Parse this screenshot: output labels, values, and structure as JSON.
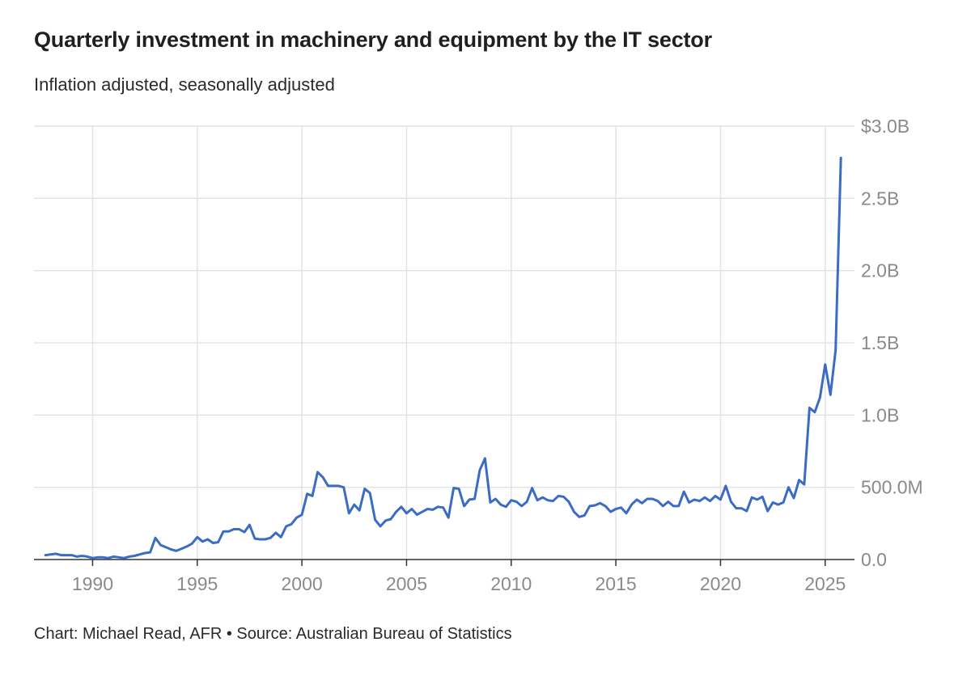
{
  "chart_data": {
    "type": "line",
    "title": "Quarterly investment in machinery and equipment by the IT sector",
    "subtitle": "Inflation adjusted, seasonally adjusted",
    "source": "Chart: Michael Read, AFR • Source: Australian Bureau of Statistics",
    "xlabel": "",
    "ylabel": "",
    "xlim": [
      1987.2,
      2026.4
    ],
    "ylim": [
      0,
      3.0
    ],
    "x_ticks": [
      1990,
      1995,
      2000,
      2005,
      2010,
      2015,
      2020,
      2025
    ],
    "x_tick_labels": [
      "1990",
      "1995",
      "2000",
      "2005",
      "2010",
      "2015",
      "2020",
      "2025"
    ],
    "y_ticks": [
      0,
      0.5,
      1.0,
      1.5,
      2.0,
      2.5,
      3.0
    ],
    "y_tick_labels": [
      "0.0",
      "500.0M",
      "1.0B",
      "1.5B",
      "2.0B",
      "2.5B",
      "$3.0B"
    ],
    "grid": true,
    "legend": "none",
    "line_color": "#3a6cc4",
    "series": [
      {
        "x": [
          1987.75,
          1988.0,
          1988.25,
          1988.5,
          1988.75,
          1989.0,
          1989.25,
          1989.5,
          1989.75,
          1990.0,
          1990.25,
          1990.5,
          1990.75,
          1991.0,
          1991.25,
          1991.5,
          1991.75,
          1992.0,
          1992.25,
          1992.5,
          1992.75,
          1993.0,
          1993.25,
          1993.5,
          1993.75,
          1994.0,
          1994.25,
          1994.5,
          1994.75,
          1995.0,
          1995.25,
          1995.5,
          1995.75,
          1996.0,
          1996.25,
          1996.5,
          1996.75,
          1997.0,
          1997.25,
          1997.5,
          1997.75,
          1998.0,
          1998.25,
          1998.5,
          1998.75,
          1999.0,
          1999.25,
          1999.5,
          1999.75,
          2000.0,
          2000.25,
          2000.5,
          2000.75,
          2001.0,
          2001.25,
          2001.5,
          2001.75,
          2002.0,
          2002.25,
          2002.5,
          2002.75,
          2003.0,
          2003.25,
          2003.5,
          2003.75,
          2004.0,
          2004.25,
          2004.5,
          2004.75,
          2005.0,
          2005.25,
          2005.5,
          2005.75,
          2006.0,
          2006.25,
          2006.5,
          2006.75,
          2007.0,
          2007.25,
          2007.5,
          2007.75,
          2008.0,
          2008.25,
          2008.5,
          2008.75,
          2009.0,
          2009.25,
          2009.5,
          2009.75,
          2010.0,
          2010.25,
          2010.5,
          2010.75,
          2011.0,
          2011.25,
          2011.5,
          2011.75,
          2012.0,
          2012.25,
          2012.5,
          2012.75,
          2013.0,
          2013.25,
          2013.5,
          2013.75,
          2014.0,
          2014.25,
          2014.5,
          2014.75,
          2015.0,
          2015.25,
          2015.5,
          2015.75,
          2016.0,
          2016.25,
          2016.5,
          2016.75,
          2017.0,
          2017.25,
          2017.5,
          2017.75,
          2018.0,
          2018.25,
          2018.5,
          2018.75,
          2019.0,
          2019.25,
          2019.5,
          2019.75,
          2020.0,
          2020.25,
          2020.5,
          2020.75,
          2021.0,
          2021.25,
          2021.5,
          2021.75,
          2022.0,
          2022.25,
          2022.5,
          2022.75,
          2023.0,
          2023.25,
          2023.5,
          2023.75,
          2024.0,
          2024.25,
          2024.5,
          2024.75,
          2025.0,
          2025.25,
          2025.5,
          2025.75
        ],
        "values": [
          0.03,
          0.035,
          0.04,
          0.03,
          0.03,
          0.03,
          0.02,
          0.025,
          0.02,
          0.01,
          0.015,
          0.015,
          0.01,
          0.02,
          0.015,
          0.01,
          0.02,
          0.025,
          0.035,
          0.045,
          0.05,
          0.15,
          0.1,
          0.085,
          0.07,
          0.06,
          0.075,
          0.09,
          0.11,
          0.155,
          0.125,
          0.14,
          0.115,
          0.12,
          0.195,
          0.195,
          0.21,
          0.21,
          0.19,
          0.24,
          0.145,
          0.14,
          0.14,
          0.15,
          0.185,
          0.155,
          0.23,
          0.245,
          0.29,
          0.31,
          0.455,
          0.44,
          0.605,
          0.57,
          0.51,
          0.51,
          0.51,
          0.5,
          0.32,
          0.38,
          0.34,
          0.49,
          0.46,
          0.275,
          0.23,
          0.27,
          0.28,
          0.33,
          0.365,
          0.32,
          0.35,
          0.31,
          0.33,
          0.35,
          0.345,
          0.365,
          0.36,
          0.29,
          0.495,
          0.49,
          0.37,
          0.415,
          0.42,
          0.62,
          0.7,
          0.395,
          0.42,
          0.38,
          0.365,
          0.41,
          0.4,
          0.37,
          0.4,
          0.495,
          0.41,
          0.43,
          0.41,
          0.405,
          0.44,
          0.435,
          0.4,
          0.33,
          0.295,
          0.305,
          0.37,
          0.375,
          0.39,
          0.37,
          0.33,
          0.35,
          0.36,
          0.32,
          0.38,
          0.415,
          0.39,
          0.42,
          0.42,
          0.405,
          0.37,
          0.4,
          0.37,
          0.37,
          0.47,
          0.395,
          0.415,
          0.405,
          0.43,
          0.405,
          0.44,
          0.415,
          0.51,
          0.4,
          0.355,
          0.355,
          0.335,
          0.43,
          0.415,
          0.435,
          0.335,
          0.395,
          0.38,
          0.395,
          0.5,
          0.425,
          0.55,
          0.52,
          1.05,
          1.02,
          1.12,
          1.35,
          1.14,
          1.45,
          2.78
        ]
      }
    ]
  }
}
